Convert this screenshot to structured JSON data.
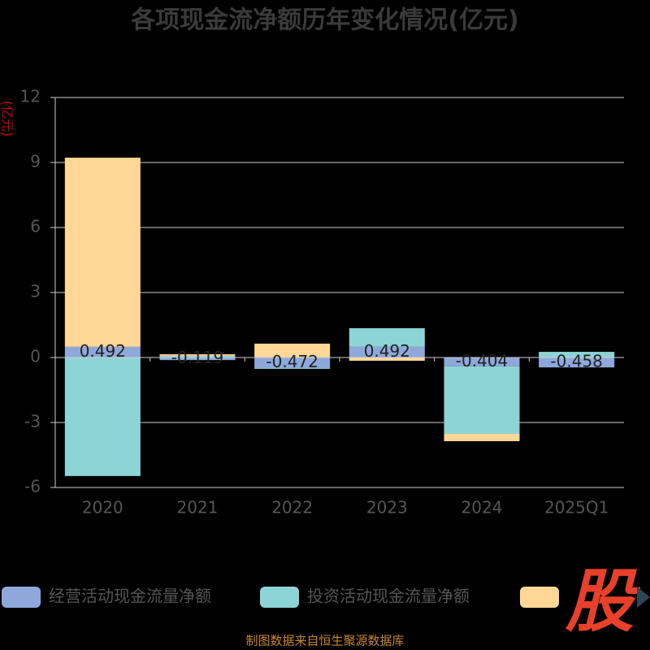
{
  "chart_data": {
    "type": "bar",
    "stacked": true,
    "title": "各项现金流净额历年变化情况(亿元)",
    "y_label": "(亿元)",
    "categories": [
      "2020",
      "2021",
      "2022",
      "2023",
      "2024",
      "2025Q1"
    ],
    "series": [
      {
        "name": "经营活动现金流量净额",
        "color": "#8fa8dc",
        "values": [
          0.492,
          -0.119,
          -0.472,
          0.492,
          -0.404,
          -0.458
        ],
        "labels": true
      },
      {
        "name": "投资活动现金流量净额",
        "color": "#8dd4d6",
        "values": [
          -5.47,
          0.08,
          -0.05,
          0.86,
          -3.12,
          0.26
        ]
      },
      {
        "color": "#ffd797",
        "values": [
          8.73,
          0.07,
          0.64,
          -0.15,
          -0.34,
          0
        ]
      }
    ],
    "ylim": [
      -6,
      12
    ],
    "yticks": [
      -6,
      -3,
      0,
      3,
      6,
      9,
      12
    ],
    "grid": true,
    "logo": "股",
    "source": "制图数据来自恒生聚源数据库"
  }
}
